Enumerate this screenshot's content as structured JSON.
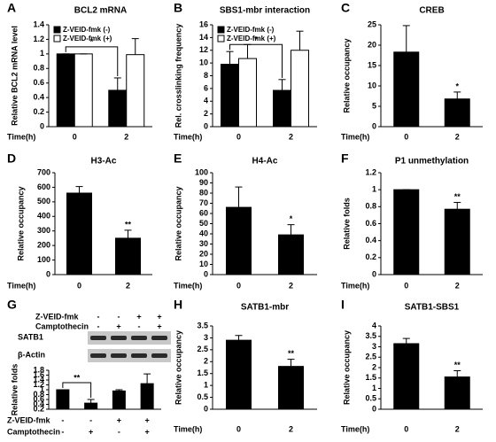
{
  "chart_data": [
    {
      "type": "bar",
      "panel": "A",
      "title": "BCL2 mRNA",
      "ylabel": "Relative BCL2 mRNA level",
      "xlabel": "Time(h)",
      "categories": [
        "0",
        "2"
      ],
      "series": [
        {
          "name": "Z-VEID-fmk (-)",
          "color": "#000000",
          "values": [
            1,
            0.5
          ],
          "errors": [
            0,
            0.17
          ]
        },
        {
          "name": "Z-VEID-fmk (+)",
          "color": "#ffffff",
          "values": [
            1,
            0.99
          ],
          "errors": [
            0,
            0.22
          ]
        }
      ],
      "ylim": [
        0,
        1.4
      ],
      "yticks": [
        0,
        0.2,
        0.4,
        0.6,
        0.8,
        1,
        1.2,
        1.4
      ],
      "annotation": "*"
    },
    {
      "type": "bar",
      "panel": "B",
      "title": "SBS1-mbr interaction",
      "ylabel": "Rel. crosslinking frequency",
      "xlabel": "Time(h)",
      "categories": [
        "0",
        "2"
      ],
      "series": [
        {
          "name": "Z-VEID-fmk (-)",
          "color": "#000000",
          "values": [
            9.8,
            5.7
          ],
          "errors": [
            2,
            1.7
          ]
        },
        {
          "name": "Z-VEID-fmk (+)",
          "color": "#ffffff",
          "values": [
            10.7,
            12
          ],
          "errors": [
            2.2,
            3
          ]
        }
      ],
      "ylim": [
        0,
        16
      ],
      "yticks": [
        0,
        2,
        4,
        6,
        8,
        10,
        12,
        14,
        16
      ],
      "annotation": "*"
    },
    {
      "type": "bar",
      "panel": "C",
      "title": "CREB",
      "ylabel": "Relative occupancy",
      "xlabel": "Time(h)",
      "categories": [
        "0",
        "2"
      ],
      "values": [
        18.3,
        6.8
      ],
      "errors": [
        6.5,
        1.7
      ],
      "color": "#000000",
      "ylim": [
        0,
        25
      ],
      "yticks": [
        0,
        5,
        10,
        15,
        20,
        25
      ],
      "annotation": "*"
    },
    {
      "type": "bar",
      "panel": "D",
      "title": "H3-Ac",
      "ylabel": "Relative occupancy",
      "xlabel": "Time(h)",
      "categories": [
        "0",
        "2"
      ],
      "values": [
        560,
        250
      ],
      "errors": [
        45,
        55
      ],
      "color": "#000000",
      "ylim": [
        0,
        700
      ],
      "yticks": [
        0,
        100,
        200,
        300,
        400,
        500,
        600,
        700
      ],
      "annotation": "**"
    },
    {
      "type": "bar",
      "panel": "E",
      "title": "H4-Ac",
      "ylabel": "Relative occupancy",
      "xlabel": "Time(h)",
      "categories": [
        "0",
        "2"
      ],
      "values": [
        66,
        39
      ],
      "errors": [
        20,
        10
      ],
      "color": "#000000",
      "ylim": [
        0,
        100
      ],
      "yticks": [
        0,
        10,
        20,
        30,
        40,
        50,
        60,
        70,
        80,
        90,
        100
      ],
      "annotation": "*"
    },
    {
      "type": "bar",
      "panel": "F",
      "title": "P1 unmethylation",
      "ylabel": "Relative folds",
      "xlabel": "Time(h)",
      "categories": [
        "0",
        "2"
      ],
      "values": [
        1,
        0.77
      ],
      "errors": [
        0,
        0.08
      ],
      "color": "#000000",
      "ylim": [
        0,
        1.2
      ],
      "yticks": [
        0,
        0.2,
        0.4,
        0.6,
        0.8,
        1,
        1.2
      ],
      "annotation": "**"
    },
    {
      "type": "blotbar",
      "panel": "G",
      "ylabel": "Relative folds",
      "conditions": [
        {
          "name": "Z-VEID-fmk",
          "signs": [
            "-",
            "-",
            "+",
            "+"
          ]
        },
        {
          "name": "Camptothecin",
          "signs": [
            "-",
            "+",
            "-",
            "+"
          ]
        }
      ],
      "blot_rows": [
        "SATB1",
        "β-Actin"
      ],
      "values": [
        1,
        0.45,
        0.95,
        1.25
      ],
      "errors": [
        0,
        0.15,
        0.05,
        0.4
      ],
      "color": "#000000",
      "ylim": [
        0.2,
        1.8
      ],
      "yticks": [
        0.2,
        0.4,
        0.6,
        0.8,
        1,
        1.2,
        1.4,
        1.6,
        1.8
      ],
      "annotation": "**"
    },
    {
      "type": "bar",
      "panel": "H",
      "title": "SATB1-mbr",
      "ylabel": "Relative occupancy",
      "xlabel": "Time(h)",
      "categories": [
        "0",
        "2"
      ],
      "values": [
        2.9,
        1.8
      ],
      "errors": [
        0.2,
        0.3
      ],
      "color": "#000000",
      "ylim": [
        0,
        3.5
      ],
      "yticks": [
        0,
        0.5,
        1,
        1.5,
        2,
        2.5,
        3,
        3.5
      ],
      "annotation": "**"
    },
    {
      "type": "bar",
      "panel": "I",
      "title": "SATB1-SBS1",
      "ylabel": "Relative occupancy",
      "xlabel": "Time(h)",
      "categories": [
        "0",
        "2"
      ],
      "values": [
        3.15,
        1.55
      ],
      "errors": [
        0.25,
        0.3
      ],
      "color": "#000000",
      "ylim": [
        0,
        4
      ],
      "yticks": [
        0,
        0.5,
        1,
        1.5,
        2,
        2.5,
        3,
        3.5,
        4
      ],
      "annotation": "**"
    }
  ]
}
